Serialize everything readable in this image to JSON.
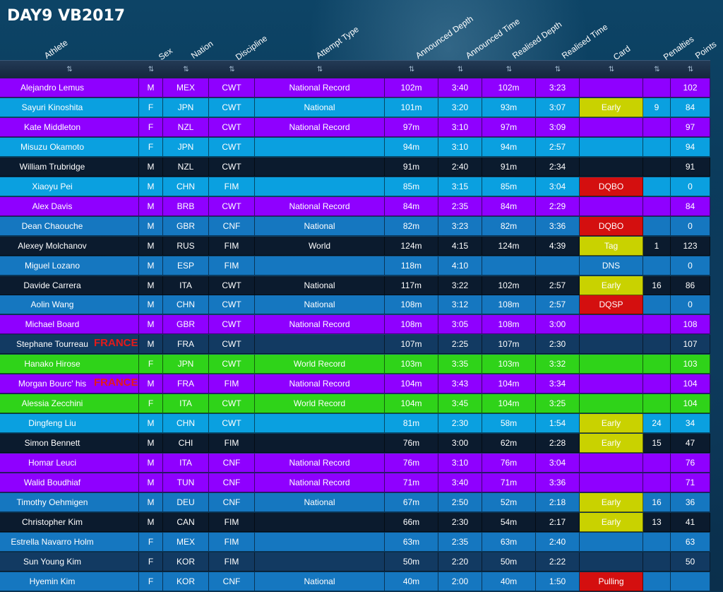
{
  "title": "DAY9 VB2017",
  "columns": [
    {
      "key": "athlete",
      "label": "Athlete"
    },
    {
      "key": "sex",
      "label": "Sex"
    },
    {
      "key": "nation",
      "label": "Nation"
    },
    {
      "key": "discipline",
      "label": "Discipline"
    },
    {
      "key": "attempt_type",
      "label": "Attempt Type"
    },
    {
      "key": "announced_depth",
      "label": "Announced Depth"
    },
    {
      "key": "announced_time",
      "label": "Announced Time"
    },
    {
      "key": "realised_depth",
      "label": "Realised Depth"
    },
    {
      "key": "realised_time",
      "label": "Realised Time"
    },
    {
      "key": "card",
      "label": "Card"
    },
    {
      "key": "penalties",
      "label": "Penalties"
    },
    {
      "key": "points",
      "label": "Points"
    }
  ],
  "sort_icon": "⇅",
  "colors": {
    "purple": "#8f00ff",
    "lightblue": "#0aa0e0",
    "blue": "#1577c0",
    "dark": "#0b1b2e",
    "green": "#2fd319",
    "navy": "#123a62",
    "card_yellow": "#c9d200",
    "card_red": "#d40f0f",
    "france_text": "#e31a1a"
  },
  "rows": [
    {
      "athlete": "Alejandro Lemus",
      "sex": "M",
      "nation": "MEX",
      "discipline": "CWT",
      "attempt_type": "National Record",
      "announced_depth": "102m",
      "announced_time": "3:40",
      "realised_depth": "102m",
      "realised_time": "3:23",
      "card": "",
      "penalties": "",
      "points": "102",
      "bg": "purple"
    },
    {
      "athlete": "Sayuri Kinoshita",
      "sex": "F",
      "nation": "JPN",
      "discipline": "CWT",
      "attempt_type": "National",
      "announced_depth": "101m",
      "announced_time": "3:20",
      "realised_depth": "93m",
      "realised_time": "3:07",
      "card": "Early",
      "card_color": "yellow",
      "penalties": "9",
      "points": "84",
      "bg": "lightblue"
    },
    {
      "athlete": "Kate Middleton",
      "sex": "F",
      "nation": "NZL",
      "discipline": "CWT",
      "attempt_type": "National Record",
      "announced_depth": "97m",
      "announced_time": "3:10",
      "realised_depth": "97m",
      "realised_time": "3:09",
      "card": "",
      "penalties": "",
      "points": "97",
      "bg": "purple"
    },
    {
      "athlete": "Misuzu Okamoto",
      "sex": "F",
      "nation": "JPN",
      "discipline": "CWT",
      "attempt_type": "",
      "announced_depth": "94m",
      "announced_time": "3:10",
      "realised_depth": "94m",
      "realised_time": "2:57",
      "card": "",
      "penalties": "",
      "points": "94",
      "bg": "lightblue"
    },
    {
      "athlete": "William Trubridge",
      "sex": "M",
      "nation": "NZL",
      "discipline": "CWT",
      "attempt_type": "",
      "announced_depth": "91m",
      "announced_time": "2:40",
      "realised_depth": "91m",
      "realised_time": "2:34",
      "card": "",
      "penalties": "",
      "points": "91",
      "bg": "dark"
    },
    {
      "athlete": "Xiaoyu Pei",
      "sex": "M",
      "nation": "CHN",
      "discipline": "FIM",
      "attempt_type": "",
      "announced_depth": "85m",
      "announced_time": "3:15",
      "realised_depth": "85m",
      "realised_time": "3:04",
      "card": "DQBO",
      "card_color": "red",
      "penalties": "",
      "points": "0",
      "bg": "lightblue"
    },
    {
      "athlete": "Alex Davis",
      "sex": "M",
      "nation": "BRB",
      "discipline": "CWT",
      "attempt_type": "National Record",
      "announced_depth": "84m",
      "announced_time": "2:35",
      "realised_depth": "84m",
      "realised_time": "2:29",
      "card": "",
      "penalties": "",
      "points": "84",
      "bg": "purple"
    },
    {
      "athlete": "Dean Chaouche",
      "sex": "M",
      "nation": "GBR",
      "discipline": "CNF",
      "attempt_type": "National",
      "announced_depth": "82m",
      "announced_time": "3:23",
      "realised_depth": "82m",
      "realised_time": "3:36",
      "card": "DQBO",
      "card_color": "red",
      "penalties": "",
      "points": "0",
      "bg": "blue"
    },
    {
      "athlete": "Alexey Molchanov",
      "sex": "M",
      "nation": "RUS",
      "discipline": "FIM",
      "attempt_type": "World",
      "announced_depth": "124m",
      "announced_time": "4:15",
      "realised_depth": "124m",
      "realised_time": "4:39",
      "card": "Tag",
      "card_color": "yellow",
      "penalties": "1",
      "points": "123",
      "bg": "dark"
    },
    {
      "athlete": "Miguel Lozano",
      "sex": "M",
      "nation": "ESP",
      "discipline": "FIM",
      "attempt_type": "",
      "announced_depth": "118m",
      "announced_time": "4:10",
      "realised_depth": "",
      "realised_time": "",
      "card": "DNS",
      "penalties": "",
      "points": "0",
      "bg": "blue"
    },
    {
      "athlete": "Davide Carrera",
      "sex": "M",
      "nation": "ITA",
      "discipline": "CWT",
      "attempt_type": "National",
      "announced_depth": "117m",
      "announced_time": "3:22",
      "realised_depth": "102m",
      "realised_time": "2:57",
      "card": "Early",
      "card_color": "yellow",
      "penalties": "16",
      "points": "86",
      "bg": "dark"
    },
    {
      "athlete": "Aolin Wang",
      "sex": "M",
      "nation": "CHN",
      "discipline": "CWT",
      "attempt_type": "National",
      "announced_depth": "108m",
      "announced_time": "3:12",
      "realised_depth": "108m",
      "realised_time": "2:57",
      "card": "DQSP",
      "card_color": "red",
      "penalties": "",
      "points": "0",
      "bg": "blue"
    },
    {
      "athlete": "Michael Board",
      "sex": "M",
      "nation": "GBR",
      "discipline": "CWT",
      "attempt_type": "National Record",
      "announced_depth": "108m",
      "announced_time": "3:05",
      "realised_depth": "108m",
      "realised_time": "3:00",
      "card": "",
      "penalties": "",
      "points": "108",
      "bg": "purple"
    },
    {
      "athlete": "Stephane Tourreau",
      "france": "FRANCE",
      "sex": "M",
      "nation": "FRA",
      "discipline": "CWT",
      "attempt_type": "",
      "announced_depth": "107m",
      "announced_time": "2:25",
      "realised_depth": "107m",
      "realised_time": "2:30",
      "card": "",
      "penalties": "",
      "points": "107",
      "bg": "navy"
    },
    {
      "athlete": "Hanako Hirose",
      "sex": "F",
      "nation": "JPN",
      "discipline": "CWT",
      "attempt_type": "World Record",
      "announced_depth": "103m",
      "announced_time": "3:35",
      "realised_depth": "103m",
      "realised_time": "3:32",
      "card": "",
      "penalties": "",
      "points": "103",
      "bg": "green"
    },
    {
      "athlete": "Morgan Bourc' his",
      "france": "FRANCE",
      "sex": "M",
      "nation": "FRA",
      "discipline": "FIM",
      "attempt_type": "National Record",
      "announced_depth": "104m",
      "announced_time": "3:43",
      "realised_depth": "104m",
      "realised_time": "3:34",
      "card": "",
      "penalties": "",
      "points": "104",
      "bg": "purple"
    },
    {
      "athlete": "Alessia Zecchini",
      "sex": "F",
      "nation": "ITA",
      "discipline": "CWT",
      "attempt_type": "World Record",
      "announced_depth": "104m",
      "announced_time": "3:45",
      "realised_depth": "104m",
      "realised_time": "3:25",
      "card": "",
      "penalties": "",
      "points": "104",
      "bg": "green"
    },
    {
      "athlete": "Dingfeng Liu",
      "sex": "M",
      "nation": "CHN",
      "discipline": "CWT",
      "attempt_type": "",
      "announced_depth": "81m",
      "announced_time": "2:30",
      "realised_depth": "58m",
      "realised_time": "1:54",
      "card": "Early",
      "card_color": "yellow",
      "penalties": "24",
      "points": "34",
      "bg": "lightblue"
    },
    {
      "athlete": "Simon Bennett",
      "sex": "M",
      "nation": "CHI",
      "discipline": "FIM",
      "attempt_type": "",
      "announced_depth": "76m",
      "announced_time": "3:00",
      "realised_depth": "62m",
      "realised_time": "2:28",
      "card": "Early",
      "card_color": "yellow",
      "penalties": "15",
      "points": "47",
      "bg": "dark"
    },
    {
      "athlete": "Homar Leuci",
      "sex": "M",
      "nation": "ITA",
      "discipline": "CNF",
      "attempt_type": "National Record",
      "announced_depth": "76m",
      "announced_time": "3:10",
      "realised_depth": "76m",
      "realised_time": "3:04",
      "card": "",
      "penalties": "",
      "points": "76",
      "bg": "purple"
    },
    {
      "athlete": "Walid Boudhiaf",
      "sex": "M",
      "nation": "TUN",
      "discipline": "CNF",
      "attempt_type": "National Record",
      "announced_depth": "71m",
      "announced_time": "3:40",
      "realised_depth": "71m",
      "realised_time": "3:36",
      "card": "",
      "penalties": "",
      "points": "71",
      "bg": "purple"
    },
    {
      "athlete": "Timothy Oehmigen",
      "sex": "M",
      "nation": "DEU",
      "discipline": "CNF",
      "attempt_type": "National",
      "announced_depth": "67m",
      "announced_time": "2:50",
      "realised_depth": "52m",
      "realised_time": "2:18",
      "card": "Early",
      "card_color": "yellow",
      "penalties": "16",
      "points": "36",
      "bg": "blue"
    },
    {
      "athlete": "Christopher Kim",
      "sex": "M",
      "nation": "CAN",
      "discipline": "FIM",
      "attempt_type": "",
      "announced_depth": "66m",
      "announced_time": "2:30",
      "realised_depth": "54m",
      "realised_time": "2:17",
      "card": "Early",
      "card_color": "yellow",
      "penalties": "13",
      "points": "41",
      "bg": "dark"
    },
    {
      "athlete": "Estrella Navarro Holm",
      "sex": "F",
      "nation": "MEX",
      "discipline": "FIM",
      "attempt_type": "",
      "announced_depth": "63m",
      "announced_time": "2:35",
      "realised_depth": "63m",
      "realised_time": "2:40",
      "card": "",
      "penalties": "",
      "points": "63",
      "bg": "blue"
    },
    {
      "athlete": "Sun Young Kim",
      "sex": "F",
      "nation": "KOR",
      "discipline": "FIM",
      "attempt_type": "",
      "announced_depth": "50m",
      "announced_time": "2:20",
      "realised_depth": "50m",
      "realised_time": "2:22",
      "card": "",
      "penalties": "",
      "points": "50",
      "bg": "navy"
    },
    {
      "athlete": "Hyemin Kim",
      "sex": "F",
      "nation": "KOR",
      "discipline": "CNF",
      "attempt_type": "National",
      "announced_depth": "40m",
      "announced_time": "2:00",
      "realised_depth": "40m",
      "realised_time": "1:50",
      "card": "Pulling",
      "card_color": "red",
      "penalties": "",
      "points": "",
      "bg": "blue"
    }
  ]
}
